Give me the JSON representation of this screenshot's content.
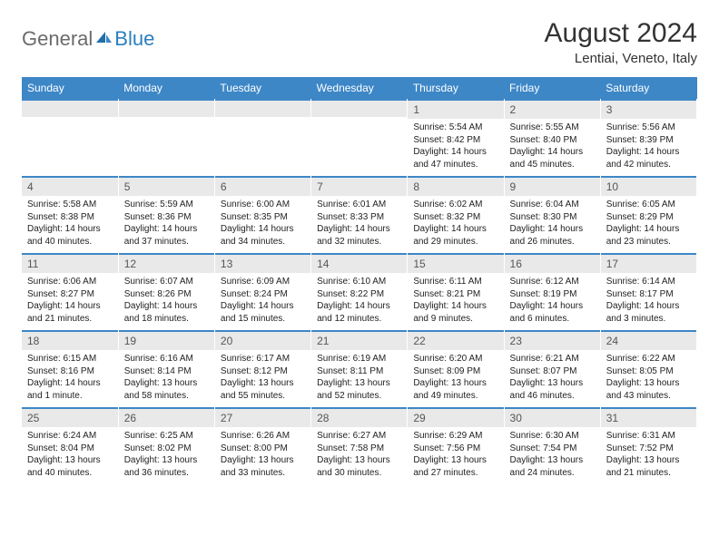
{
  "logo": {
    "gen": "General",
    "blue": "Blue"
  },
  "title": "August 2024",
  "location": "Lentiai, Veneto, Italy",
  "colors": {
    "header_bg": "#3d87c7",
    "daynum_bg": "#e9e9e9",
    "text": "#333333",
    "logo_gray": "#6b6b6b",
    "logo_blue": "#2a7fbf"
  },
  "weekdays": [
    "Sunday",
    "Monday",
    "Tuesday",
    "Wednesday",
    "Thursday",
    "Friday",
    "Saturday"
  ],
  "weeks": [
    [
      null,
      null,
      null,
      null,
      {
        "n": "1",
        "sr": "Sunrise: 5:54 AM",
        "ss": "Sunset: 8:42 PM",
        "dl": "Daylight: 14 hours and 47 minutes."
      },
      {
        "n": "2",
        "sr": "Sunrise: 5:55 AM",
        "ss": "Sunset: 8:40 PM",
        "dl": "Daylight: 14 hours and 45 minutes."
      },
      {
        "n": "3",
        "sr": "Sunrise: 5:56 AM",
        "ss": "Sunset: 8:39 PM",
        "dl": "Daylight: 14 hours and 42 minutes."
      }
    ],
    [
      {
        "n": "4",
        "sr": "Sunrise: 5:58 AM",
        "ss": "Sunset: 8:38 PM",
        "dl": "Daylight: 14 hours and 40 minutes."
      },
      {
        "n": "5",
        "sr": "Sunrise: 5:59 AM",
        "ss": "Sunset: 8:36 PM",
        "dl": "Daylight: 14 hours and 37 minutes."
      },
      {
        "n": "6",
        "sr": "Sunrise: 6:00 AM",
        "ss": "Sunset: 8:35 PM",
        "dl": "Daylight: 14 hours and 34 minutes."
      },
      {
        "n": "7",
        "sr": "Sunrise: 6:01 AM",
        "ss": "Sunset: 8:33 PM",
        "dl": "Daylight: 14 hours and 32 minutes."
      },
      {
        "n": "8",
        "sr": "Sunrise: 6:02 AM",
        "ss": "Sunset: 8:32 PM",
        "dl": "Daylight: 14 hours and 29 minutes."
      },
      {
        "n": "9",
        "sr": "Sunrise: 6:04 AM",
        "ss": "Sunset: 8:30 PM",
        "dl": "Daylight: 14 hours and 26 minutes."
      },
      {
        "n": "10",
        "sr": "Sunrise: 6:05 AM",
        "ss": "Sunset: 8:29 PM",
        "dl": "Daylight: 14 hours and 23 minutes."
      }
    ],
    [
      {
        "n": "11",
        "sr": "Sunrise: 6:06 AM",
        "ss": "Sunset: 8:27 PM",
        "dl": "Daylight: 14 hours and 21 minutes."
      },
      {
        "n": "12",
        "sr": "Sunrise: 6:07 AM",
        "ss": "Sunset: 8:26 PM",
        "dl": "Daylight: 14 hours and 18 minutes."
      },
      {
        "n": "13",
        "sr": "Sunrise: 6:09 AM",
        "ss": "Sunset: 8:24 PM",
        "dl": "Daylight: 14 hours and 15 minutes."
      },
      {
        "n": "14",
        "sr": "Sunrise: 6:10 AM",
        "ss": "Sunset: 8:22 PM",
        "dl": "Daylight: 14 hours and 12 minutes."
      },
      {
        "n": "15",
        "sr": "Sunrise: 6:11 AM",
        "ss": "Sunset: 8:21 PM",
        "dl": "Daylight: 14 hours and 9 minutes."
      },
      {
        "n": "16",
        "sr": "Sunrise: 6:12 AM",
        "ss": "Sunset: 8:19 PM",
        "dl": "Daylight: 14 hours and 6 minutes."
      },
      {
        "n": "17",
        "sr": "Sunrise: 6:14 AM",
        "ss": "Sunset: 8:17 PM",
        "dl": "Daylight: 14 hours and 3 minutes."
      }
    ],
    [
      {
        "n": "18",
        "sr": "Sunrise: 6:15 AM",
        "ss": "Sunset: 8:16 PM",
        "dl": "Daylight: 14 hours and 1 minute."
      },
      {
        "n": "19",
        "sr": "Sunrise: 6:16 AM",
        "ss": "Sunset: 8:14 PM",
        "dl": "Daylight: 13 hours and 58 minutes."
      },
      {
        "n": "20",
        "sr": "Sunrise: 6:17 AM",
        "ss": "Sunset: 8:12 PM",
        "dl": "Daylight: 13 hours and 55 minutes."
      },
      {
        "n": "21",
        "sr": "Sunrise: 6:19 AM",
        "ss": "Sunset: 8:11 PM",
        "dl": "Daylight: 13 hours and 52 minutes."
      },
      {
        "n": "22",
        "sr": "Sunrise: 6:20 AM",
        "ss": "Sunset: 8:09 PM",
        "dl": "Daylight: 13 hours and 49 minutes."
      },
      {
        "n": "23",
        "sr": "Sunrise: 6:21 AM",
        "ss": "Sunset: 8:07 PM",
        "dl": "Daylight: 13 hours and 46 minutes."
      },
      {
        "n": "24",
        "sr": "Sunrise: 6:22 AM",
        "ss": "Sunset: 8:05 PM",
        "dl": "Daylight: 13 hours and 43 minutes."
      }
    ],
    [
      {
        "n": "25",
        "sr": "Sunrise: 6:24 AM",
        "ss": "Sunset: 8:04 PM",
        "dl": "Daylight: 13 hours and 40 minutes."
      },
      {
        "n": "26",
        "sr": "Sunrise: 6:25 AM",
        "ss": "Sunset: 8:02 PM",
        "dl": "Daylight: 13 hours and 36 minutes."
      },
      {
        "n": "27",
        "sr": "Sunrise: 6:26 AM",
        "ss": "Sunset: 8:00 PM",
        "dl": "Daylight: 13 hours and 33 minutes."
      },
      {
        "n": "28",
        "sr": "Sunrise: 6:27 AM",
        "ss": "Sunset: 7:58 PM",
        "dl": "Daylight: 13 hours and 30 minutes."
      },
      {
        "n": "29",
        "sr": "Sunrise: 6:29 AM",
        "ss": "Sunset: 7:56 PM",
        "dl": "Daylight: 13 hours and 27 minutes."
      },
      {
        "n": "30",
        "sr": "Sunrise: 6:30 AM",
        "ss": "Sunset: 7:54 PM",
        "dl": "Daylight: 13 hours and 24 minutes."
      },
      {
        "n": "31",
        "sr": "Sunrise: 6:31 AM",
        "ss": "Sunset: 7:52 PM",
        "dl": "Daylight: 13 hours and 21 minutes."
      }
    ]
  ]
}
